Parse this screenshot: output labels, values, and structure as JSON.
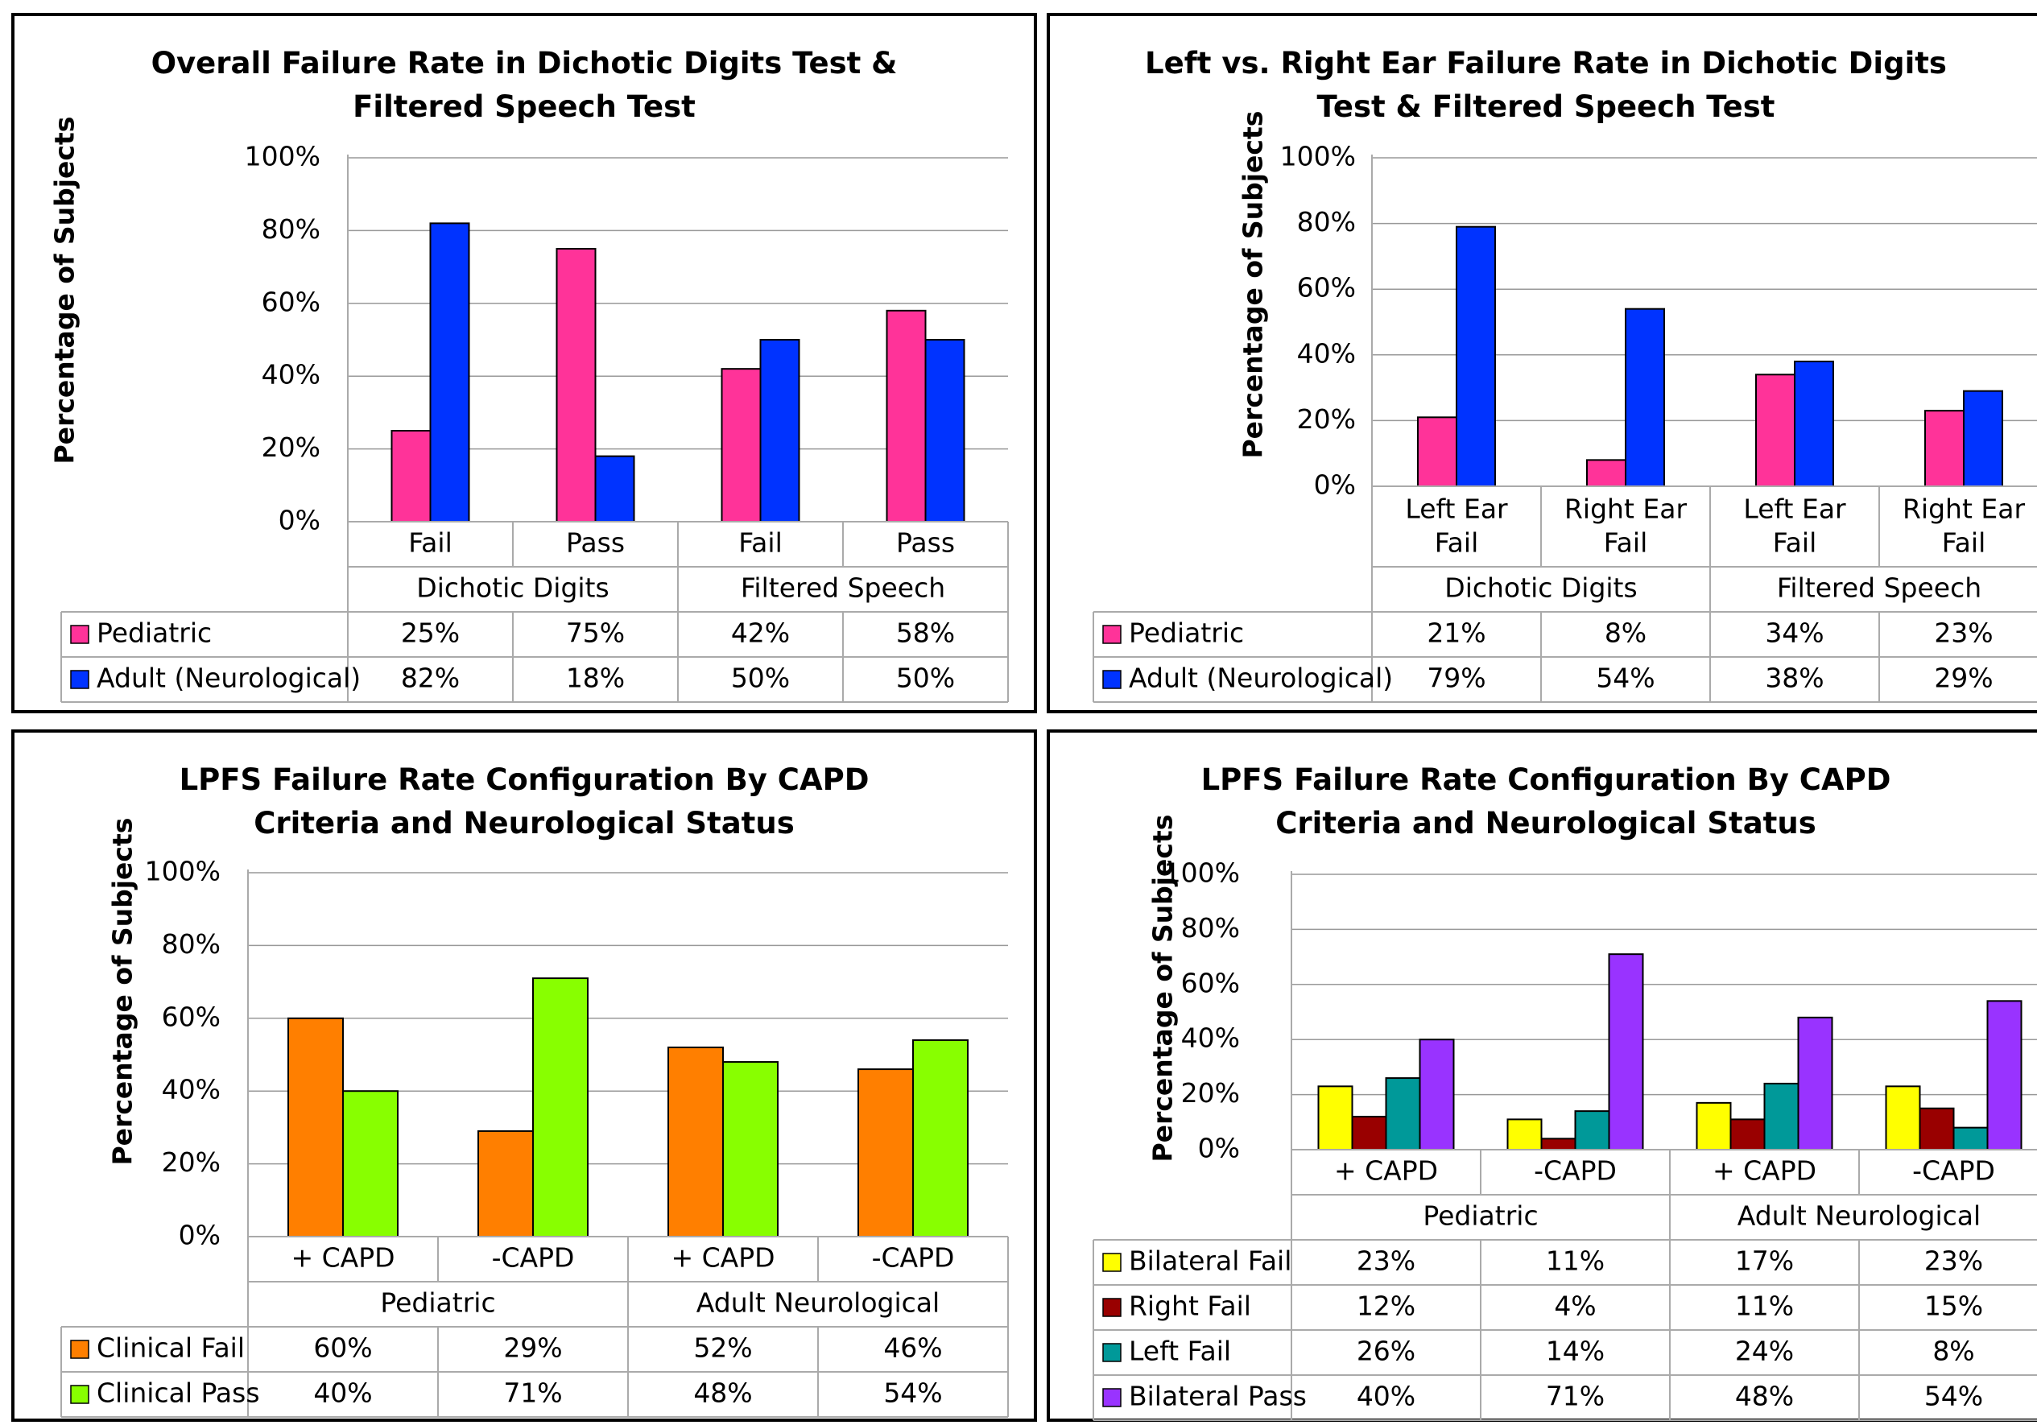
{
  "chart_data": [
    {
      "type": "bar",
      "title": "Overall Failure Rate in Dichotic Digits Test & Filtered Speech Test",
      "ylabel": "Percentage of Subjects",
      "yticks": [
        "0%",
        "20%",
        "40%",
        "60%",
        "80%",
        "100%"
      ],
      "ylim": [
        0,
        100
      ],
      "groups": [
        "Dichotic Digits",
        "Filtered Speech"
      ],
      "categories": [
        "Fail",
        "Pass",
        "Fail",
        "Pass"
      ],
      "series": [
        {
          "name": "Pediatric",
          "color": "#ff3399",
          "values": [
            25,
            75,
            42,
            58
          ],
          "labels": [
            "25%",
            "75%",
            "42%",
            "58%"
          ]
        },
        {
          "name": "Adult (Neurological)",
          "color": "#0033ff",
          "values": [
            82,
            18,
            50,
            50
          ],
          "labels": [
            "82%",
            "18%",
            "50%",
            "50%"
          ]
        }
      ],
      "grid": true,
      "legend": "table"
    },
    {
      "type": "bar",
      "title": "Left vs. Right Ear Failure Rate in Dichotic Digits Test & Filtered Speech Test",
      "ylabel": "Percentage of Subjects",
      "yticks": [
        "0%",
        "20%",
        "40%",
        "60%",
        "80%",
        "100%"
      ],
      "ylim": [
        0,
        100
      ],
      "groups": [
        "Dichotic Digits",
        "Filtered Speech"
      ],
      "categories": [
        "Left Ear\nFail",
        "Right Ear\nFail",
        "Left Ear\nFail",
        "Right Ear\nFail"
      ],
      "series": [
        {
          "name": "Pediatric",
          "color": "#ff3399",
          "values": [
            21,
            8,
            34,
            23
          ],
          "labels": [
            "21%",
            "8%",
            "34%",
            "23%"
          ]
        },
        {
          "name": "Adult (Neurological)",
          "color": "#0033ff",
          "values": [
            79,
            54,
            38,
            29
          ],
          "labels": [
            "79%",
            "54%",
            "38%",
            "29%"
          ]
        }
      ],
      "grid": true,
      "legend": "table"
    },
    {
      "type": "bar",
      "title": "LPFS Failure Rate Configuration By CAPD Criteria and Neurological Status",
      "ylabel": "Percentage of Subjects",
      "yticks": [
        "0%",
        "20%",
        "40%",
        "60%",
        "80%",
        "100%"
      ],
      "ylim": [
        0,
        100
      ],
      "groups": [
        "Pediatric",
        "Adult Neurological"
      ],
      "categories": [
        "+ CAPD",
        "-CAPD",
        "+ CAPD",
        "-CAPD"
      ],
      "series": [
        {
          "name": "Clinical Fail",
          "color": "#ff7f00",
          "values": [
            60,
            29,
            52,
            46
          ],
          "labels": [
            "60%",
            "29%",
            "52%",
            "46%"
          ]
        },
        {
          "name": "Clinical Pass",
          "color": "#88ff00",
          "values": [
            40,
            71,
            48,
            54
          ],
          "labels": [
            "40%",
            "71%",
            "48%",
            "54%"
          ]
        }
      ],
      "grid": true,
      "legend": "table"
    },
    {
      "type": "bar",
      "title": "LPFS Failure Rate Configuration By CAPD Criteria and Neurological Status",
      "ylabel": "Percentage of Subjects",
      "yticks": [
        "0%",
        "20%",
        "40%",
        "60%",
        "80%",
        "100%"
      ],
      "ylim": [
        0,
        100
      ],
      "groups": [
        "Pediatric",
        "Adult Neurological"
      ],
      "categories": [
        "+ CAPD",
        "-CAPD",
        "+ CAPD",
        "-CAPD"
      ],
      "series": [
        {
          "name": "Bilateral Fail",
          "color": "#ffff00",
          "values": [
            23,
            11,
            17,
            23
          ],
          "labels": [
            "23%",
            "11%",
            "17%",
            "23%"
          ]
        },
        {
          "name": "Right Fail",
          "color": "#990000",
          "values": [
            12,
            4,
            11,
            15
          ],
          "labels": [
            "12%",
            "4%",
            "11%",
            "15%"
          ]
        },
        {
          "name": "Left Fail",
          "color": "#009999",
          "values": [
            26,
            14,
            24,
            8
          ],
          "labels": [
            "26%",
            "14%",
            "24%",
            "8%"
          ]
        },
        {
          "name": "Bilateral Pass",
          "color": "#9933ff",
          "values": [
            40,
            71,
            48,
            54
          ],
          "labels": [
            "40%",
            "71%",
            "48%",
            "54%"
          ]
        }
      ],
      "grid": true,
      "legend": "table"
    }
  ]
}
